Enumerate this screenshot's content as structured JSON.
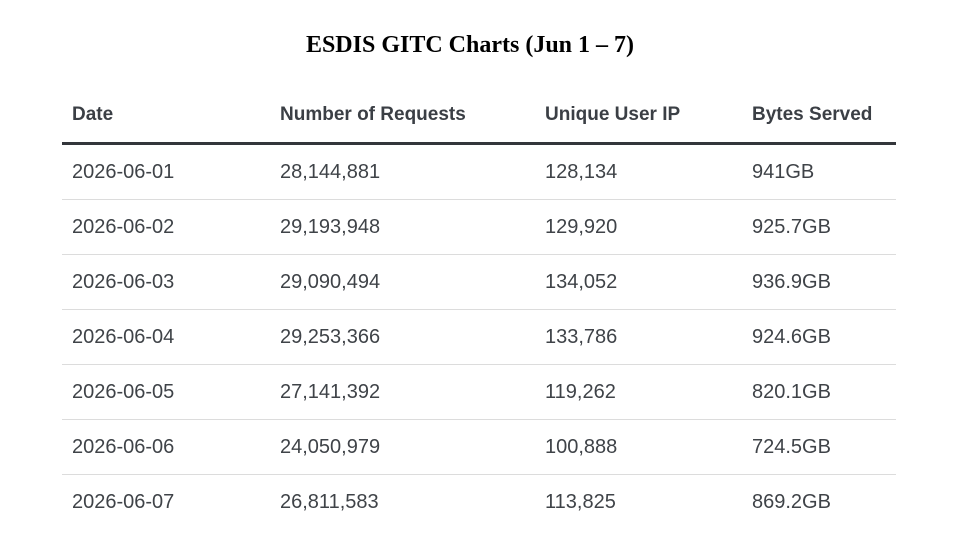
{
  "title": "ESDIS GITC Charts (Jun 1 – 7)",
  "table": {
    "headers": [
      "Date",
      "Number of Requests",
      "Unique User IP",
      "Bytes Served"
    ],
    "rows": [
      [
        "2026-06-01",
        "28,144,881",
        "128,134",
        "941GB"
      ],
      [
        "2026-06-02",
        "29,193,948",
        "129,920",
        "925.7GB"
      ],
      [
        "2026-06-03",
        "29,090,494",
        "134,052",
        "936.9GB"
      ],
      [
        "2026-06-04",
        "29,253,366",
        "133,786",
        "924.6GB"
      ],
      [
        "2026-06-05",
        "27,141,392",
        "119,262",
        "820.1GB"
      ],
      [
        "2026-06-06",
        "24,050,979",
        "100,888",
        "724.5GB"
      ],
      [
        "2026-06-07",
        "26,811,583",
        "113,825",
        "869.2GB"
      ]
    ]
  }
}
